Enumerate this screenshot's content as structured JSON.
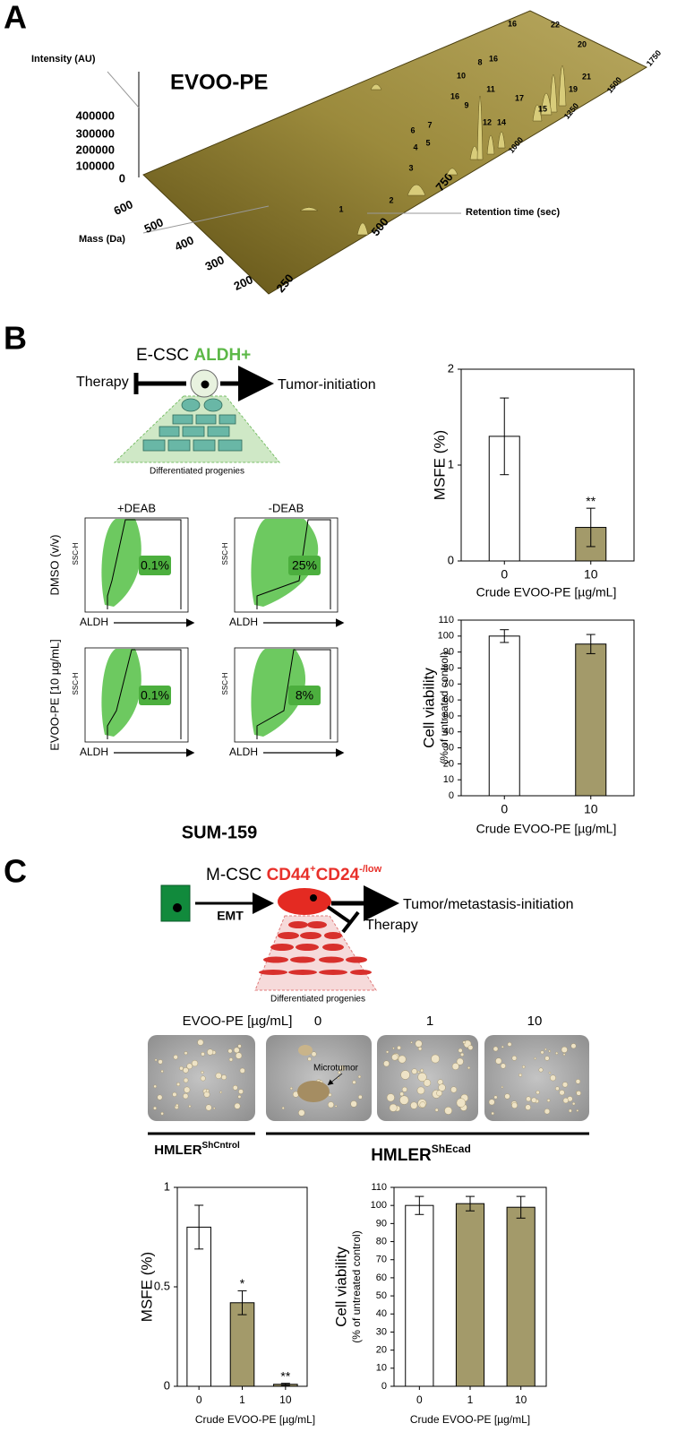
{
  "panel_labels": [
    "A",
    "B",
    "C"
  ],
  "panel_a": {
    "title": "EVOO-PE",
    "z_label": "Intensity (AU)",
    "y_label": "Mass (Da)",
    "x_label": "Retention time (sec)",
    "z_ticks": [
      400000,
      300000,
      200000,
      100000,
      0
    ],
    "y_ticks": [
      600,
      500,
      400,
      300,
      200
    ],
    "x_ticks": [
      250,
      500,
      750,
      1000,
      1250,
      1500,
      1750
    ],
    "peak_labels": [
      "1",
      "2",
      "3",
      "4",
      "5",
      "6",
      "7",
      "8",
      "9",
      "10",
      "11",
      "12",
      "14",
      "15",
      "16",
      "16",
      "16",
      "17",
      "19",
      "20",
      "21",
      "22"
    ]
  },
  "panel_b": {
    "diagram": {
      "cell": "E-CSC",
      "marker": "ALDH+",
      "left": "Therapy",
      "right": "Tumor-initiation",
      "progenies": "Differentiated progenies"
    },
    "flow": {
      "columns": [
        "+DEAB",
        "-DEAB"
      ],
      "rows": [
        "DMSO (v/v)",
        "EVOO-PE [10 µg/mL]"
      ],
      "y_axis": "SSC-H",
      "x_axis": "ALDH",
      "percentages": [
        [
          "0.1%",
          "25%"
        ],
        [
          "0.1%",
          "8%"
        ]
      ],
      "cell_line": "SUM-159"
    }
  },
  "panel_c": {
    "diagram": {
      "cell": "M-CSC",
      "marker_a": "CD44",
      "marker_a_sup": "+",
      "marker_b": "CD24",
      "marker_b_sup": "-/low",
      "transition": "EMT",
      "right": "Tumor/metastasis-initiation",
      "therapy": "Therapy",
      "progenies": "Differentiated progenies"
    },
    "images": {
      "dose_label": "EVOO-PE [µg/mL]",
      "doses": [
        "0",
        "1",
        "10"
      ],
      "annotation": "Microtumor",
      "groups": [
        {
          "name": "HMLER",
          "sup": "ShCntrol"
        },
        {
          "name": "HMLER",
          "sup": "ShEcad"
        }
      ]
    }
  },
  "chart_data": [
    {
      "type": "bar",
      "categories": [
        "0",
        "10"
      ],
      "values": [
        1.3,
        0.35
      ],
      "errors": [
        0.4,
        0.2
      ],
      "colors": [
        "#ffffff",
        "#a39a6a"
      ],
      "ylim": [
        0,
        2
      ],
      "yticks": [
        0,
        1,
        2
      ],
      "xlabel": "Crude EVOO-PE [µg/mL]",
      "ylabel": [
        "MSFE (%)"
      ],
      "significance": [
        null,
        "**"
      ]
    },
    {
      "type": "bar",
      "categories": [
        "0",
        "10"
      ],
      "values": [
        100,
        95
      ],
      "errors": [
        4,
        6
      ],
      "colors": [
        "#ffffff",
        "#a39a6a"
      ],
      "ylim": [
        0,
        110
      ],
      "yticks": [
        0,
        10,
        20,
        30,
        40,
        50,
        60,
        70,
        80,
        90,
        100,
        110
      ],
      "xlabel": "Crude EVOO-PE [µg/mL]",
      "ylabel": [
        "Cell viability",
        "(% of untreated control)"
      ]
    },
    {
      "type": "bar",
      "categories": [
        "0",
        "1",
        "10"
      ],
      "values": [
        0.8,
        0.42,
        0.01
      ],
      "errors": [
        0.11,
        0.06,
        0.005
      ],
      "colors": [
        "#ffffff",
        "#a39a6a",
        "#a39a6a"
      ],
      "ylim": [
        0,
        1
      ],
      "yticks": [
        0,
        0.5,
        1
      ],
      "xlabel": "Crude EVOO-PE [µg/mL]",
      "ylabel": [
        "MSFE (%)"
      ],
      "significance": [
        null,
        "*",
        "**"
      ]
    },
    {
      "type": "bar",
      "categories": [
        "0",
        "1",
        "10"
      ],
      "values": [
        100,
        101,
        99
      ],
      "errors": [
        5,
        4,
        6
      ],
      "colors": [
        "#ffffff",
        "#a39a6a",
        "#a39a6a"
      ],
      "ylim": [
        0,
        110
      ],
      "yticks": [
        0,
        10,
        20,
        30,
        40,
        50,
        60,
        70,
        80,
        90,
        100,
        110
      ],
      "xlabel": "Crude EVOO-PE [µg/mL]",
      "ylabel": [
        "Cell viability",
        "(% of untreated control)"
      ]
    }
  ]
}
